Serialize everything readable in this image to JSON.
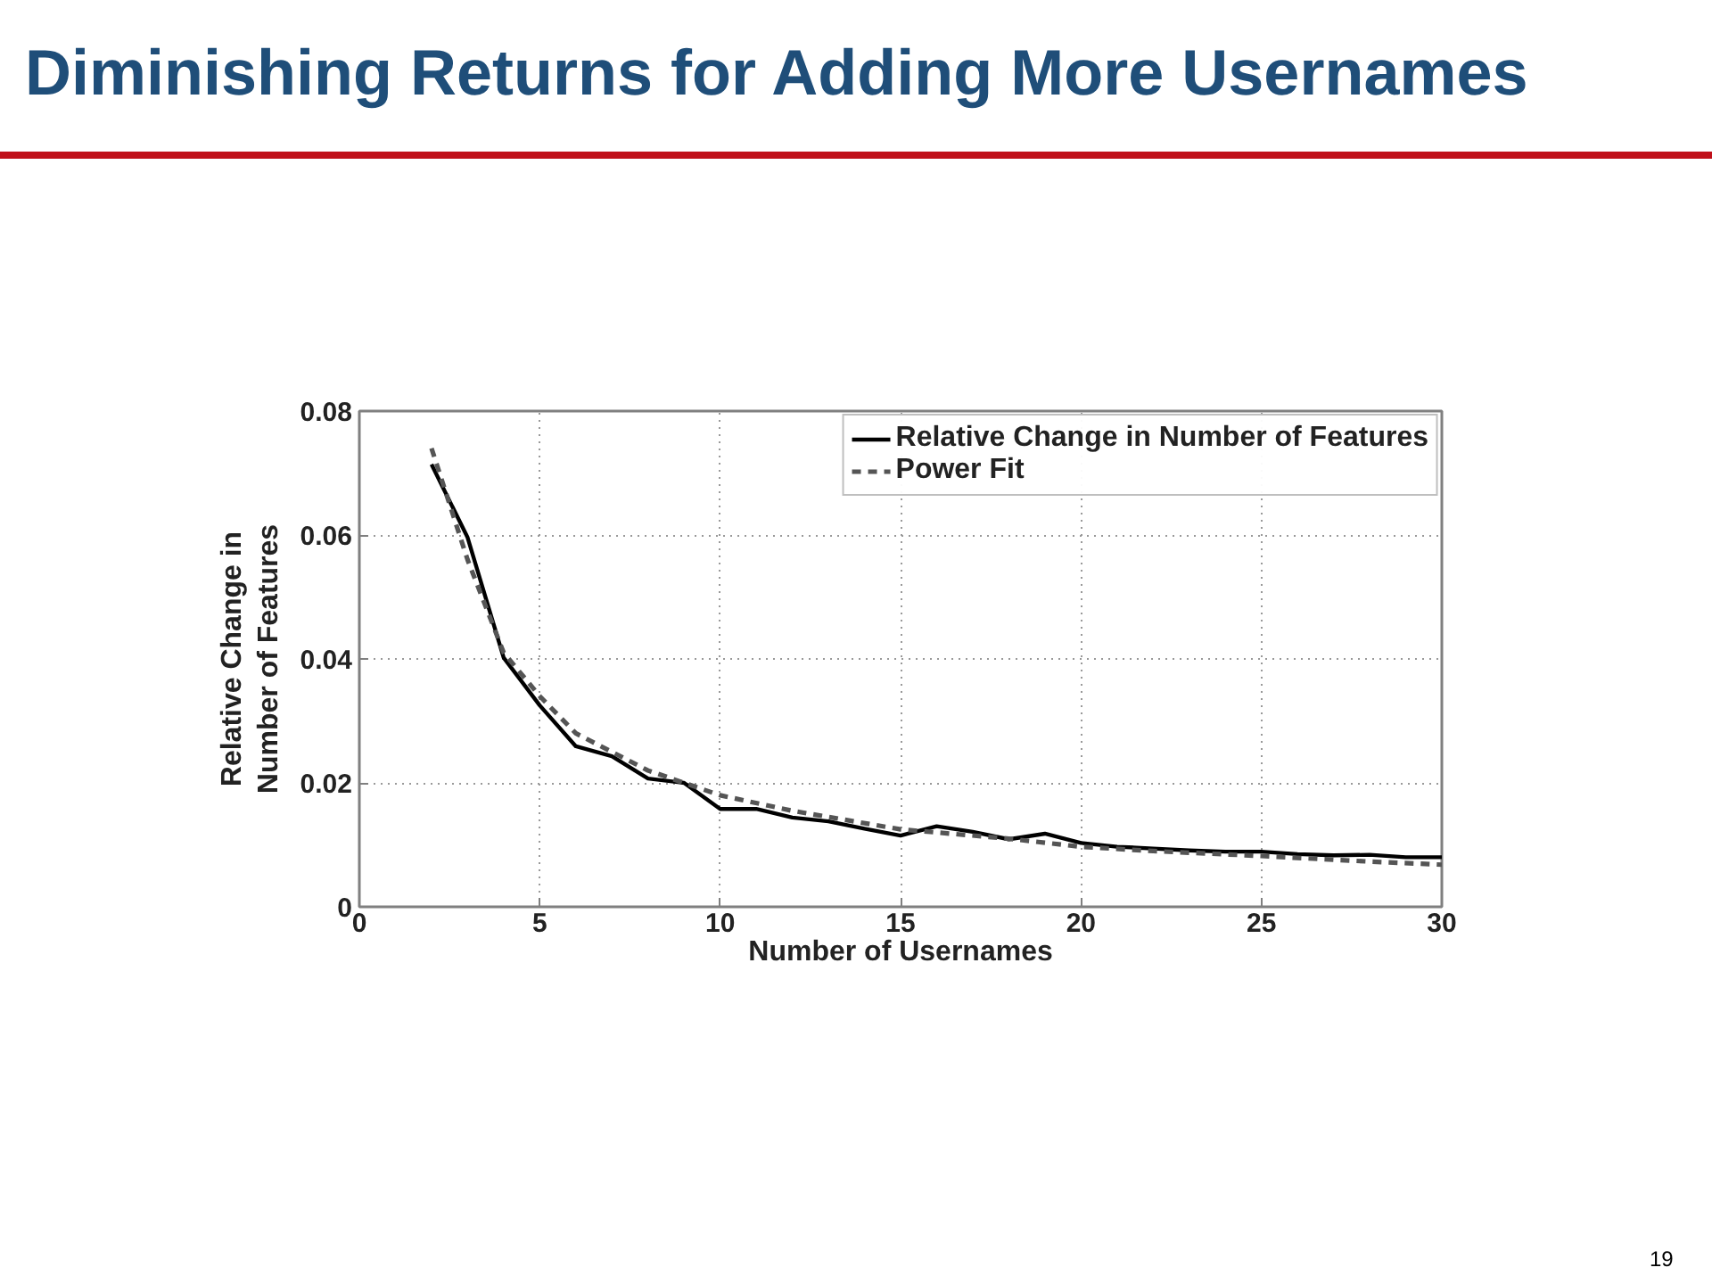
{
  "chart_data": {
    "type": "line",
    "title": "Diminishing Returns for Adding More Usernames",
    "xlabel": "Number of Usernames",
    "ylabel": "Relative Change in Number of Features",
    "annotations": [
      "19"
    ],
    "xlim": [
      0,
      30
    ],
    "ylim": [
      0,
      0.08
    ],
    "xticks": [
      0,
      5,
      10,
      15,
      20,
      25,
      30
    ],
    "yticks": [
      0,
      0.02,
      0.04,
      0.06,
      0.08
    ],
    "grid": true,
    "legend": "top right",
    "marker": "none",
    "series": [
      {
        "name": "Relative Change in Number of Features",
        "color": "#000000",
        "line_style": "solid",
        "x": [
          2,
          3,
          4,
          5,
          6,
          7,
          8,
          9,
          10,
          11,
          12,
          13,
          14,
          15,
          16,
          17,
          18,
          19,
          20,
          21,
          22,
          23,
          24,
          25,
          26,
          27,
          28,
          29,
          30
        ],
        "values": [
          0.0714,
          0.0596,
          0.0402,
          0.0325,
          0.0259,
          0.0243,
          0.0207,
          0.02,
          0.0158,
          0.0158,
          0.0144,
          0.0138,
          0.0126,
          0.0115,
          0.013,
          0.0121,
          0.0109,
          0.0118,
          0.0103,
          0.0097,
          0.0094,
          0.0091,
          0.0089,
          0.0089,
          0.0085,
          0.0083,
          0.0084,
          0.008,
          0.008
        ]
      },
      {
        "name": "Power Fit",
        "color": "#555555",
        "line_style": "dashed",
        "x": [
          2,
          3,
          4,
          5,
          6,
          7,
          8,
          9,
          10,
          12,
          15,
          18,
          20,
          22,
          25,
          28,
          30
        ],
        "values": [
          0.074,
          0.056,
          0.041,
          0.034,
          0.028,
          0.025,
          0.022,
          0.02,
          0.018,
          0.0155,
          0.0125,
          0.011,
          0.0097,
          0.009,
          0.0082,
          0.0073,
          0.0068
        ]
      }
    ]
  }
}
